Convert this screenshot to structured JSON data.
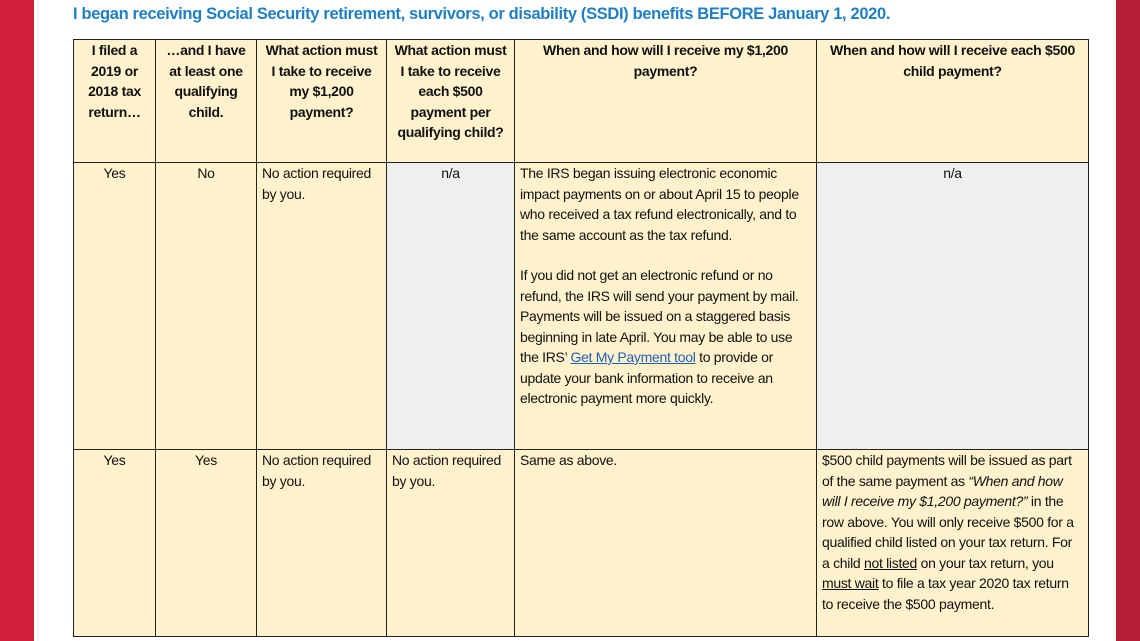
{
  "title": "I began receiving Social Security retirement, survivors, or disability (SSDI) benefits BEFORE January 1, 2020.",
  "colors": {
    "accent_red": "#d2203a",
    "title_blue": "#1f7fc4",
    "cell_cream": "#fff2cc",
    "cell_gray": "#efefef",
    "link": "#1f5fb4"
  },
  "headers": [
    "I filed a 2019 or 2018 tax return…",
    "…and I have at least one qualifying child.",
    "What action must I take to receive my $1,200 payment?",
    "What action must I take to receive each $500 payment per qualifying child?",
    "When and how will I receive my $1,200 payment?",
    "When and how will I receive each $500 child payment?"
  ],
  "rows": [
    {
      "filed": "Yes",
      "child": "No",
      "action_1200": "No action required by you.",
      "action_500": "n/a",
      "how_1200": {
        "p1": "The IRS began issuing electronic economic impact payments on or about April 15 to people who received a tax refund electronically, and to the same account as the tax refund.",
        "p2_before": "If you did not get an electronic refund or no refund, the IRS will send your payment by mail. Payments will be issued on a staggered basis beginning in late April. You may be able to use the IRS’ ",
        "p2_link": "Get My Payment tool",
        "p2_after": " to provide or update your bank information to receive an electronic payment more quickly."
      },
      "how_500": "n/a"
    },
    {
      "filed": "Yes",
      "child": "Yes",
      "action_1200": "No action required by you.",
      "action_500": "No action required by you.",
      "how_1200": "Same as above.",
      "how_500": {
        "s1": "$500 child payments will be issued as part of the same payment as ",
        "s2_italic": "“When and how will I receive my $1,200 payment?”",
        "s3": " in the row above. You will only receive $500 for a qualified child listed on your tax return. For a child ",
        "s4_underline": "not listed",
        "s5": " on your tax return, you ",
        "s6_underline": "must wait",
        "s7": " to file a tax year 2020 tax return to receive the $500 payment."
      }
    }
  ]
}
